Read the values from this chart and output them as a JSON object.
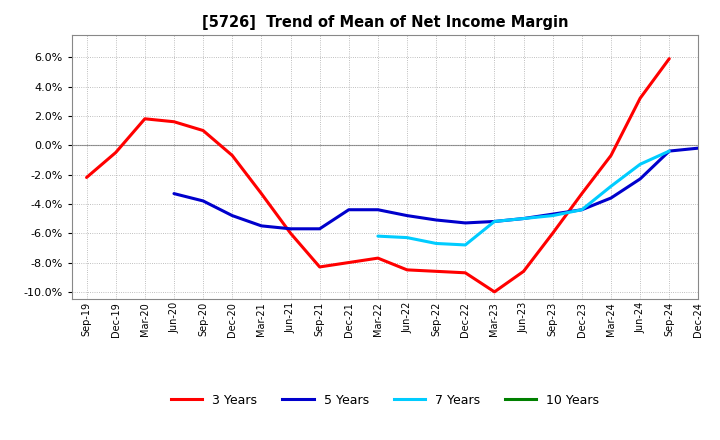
{
  "title": "[5726]  Trend of Mean of Net Income Margin",
  "x_labels": [
    "Sep-19",
    "Dec-19",
    "Mar-20",
    "Jun-20",
    "Sep-20",
    "Dec-20",
    "Mar-21",
    "Jun-21",
    "Sep-21",
    "Dec-21",
    "Mar-22",
    "Jun-22",
    "Sep-22",
    "Dec-22",
    "Mar-23",
    "Jun-23",
    "Sep-23",
    "Dec-23",
    "Mar-24",
    "Jun-24",
    "Sep-24",
    "Dec-24"
  ],
  "ylim": [
    -0.105,
    0.075
  ],
  "yticks": [
    -0.1,
    -0.08,
    -0.06,
    -0.04,
    -0.02,
    0.0,
    0.02,
    0.04,
    0.06
  ],
  "series": {
    "3 Years": {
      "color": "#FF0000",
      "linewidth": 2.2,
      "xs": [
        0,
        1,
        2,
        3,
        4,
        5,
        6,
        7,
        8,
        9,
        10,
        11,
        12,
        13,
        14,
        15,
        16,
        17,
        18,
        19,
        20
      ],
      "ys": [
        -0.022,
        -0.005,
        0.018,
        0.016,
        0.01,
        -0.007,
        -0.033,
        -0.06,
        -0.083,
        -0.08,
        -0.077,
        -0.085,
        -0.086,
        -0.087,
        -0.1,
        -0.086,
        -0.06,
        -0.033,
        -0.007,
        0.032,
        0.059
      ]
    },
    "5 Years": {
      "color": "#0000CC",
      "linewidth": 2.2,
      "xs": [
        3,
        4,
        5,
        6,
        7,
        8,
        9,
        10,
        11,
        12,
        13,
        14,
        15,
        16,
        17,
        18,
        19,
        20,
        21
      ],
      "ys": [
        -0.033,
        -0.038,
        -0.048,
        -0.055,
        -0.057,
        -0.057,
        -0.044,
        -0.044,
        -0.048,
        -0.051,
        -0.053,
        -0.052,
        -0.05,
        -0.047,
        -0.044,
        -0.036,
        -0.023,
        -0.004,
        -0.002
      ]
    },
    "7 Years": {
      "color": "#00CCFF",
      "linewidth": 2.2,
      "xs": [
        10,
        11,
        12,
        13,
        14,
        15,
        16,
        17,
        18,
        19,
        20
      ],
      "ys": [
        -0.062,
        -0.063,
        -0.067,
        -0.068,
        -0.052,
        -0.05,
        -0.048,
        -0.044,
        -0.028,
        -0.013,
        -0.004
      ]
    },
    "10 Years": {
      "color": "#008000",
      "linewidth": 2.2,
      "xs": [],
      "ys": []
    }
  },
  "legend_order": [
    "3 Years",
    "5 Years",
    "7 Years",
    "10 Years"
  ],
  "background_color": "#FFFFFF",
  "grid_color": "#AAAAAA",
  "zero_line_color": "#888888"
}
